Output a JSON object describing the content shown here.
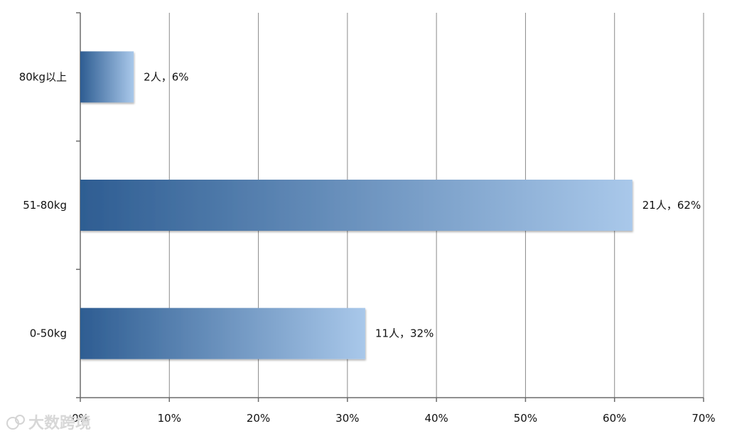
{
  "chart_data": {
    "type": "bar",
    "orientation": "horizontal",
    "categories": [
      "0-50kg",
      "51-80kg",
      "80kg以上"
    ],
    "values": [
      32,
      62,
      6
    ],
    "counts": [
      11,
      21,
      2
    ],
    "data_labels": [
      "11人，32%",
      "21人，62%",
      "2人，6%"
    ],
    "xlim": [
      0,
      70
    ],
    "x_ticks": [
      0,
      10,
      20,
      30,
      40,
      50,
      60,
      70
    ],
    "x_tick_labels": [
      "0%",
      "10%",
      "20%",
      "30%",
      "40%",
      "50%",
      "60%",
      "70%"
    ],
    "grid": "vertical",
    "legend": "none",
    "colors": {
      "bar_start": "#2e5d92",
      "bar_end": "#a9c8ea",
      "grid": "#8a8a8a",
      "axis": "#6b6b6b"
    }
  },
  "watermark": {
    "text": "大数跨境"
  }
}
